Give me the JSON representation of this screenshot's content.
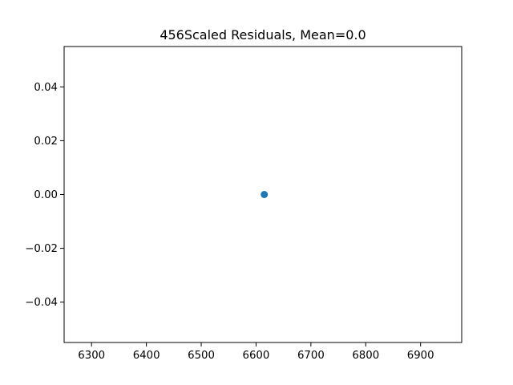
{
  "chart_data": {
    "type": "scatter",
    "title": "456Scaled Residuals, Mean=0.0",
    "xlabel": "",
    "ylabel": "",
    "xlim": [
      6250,
      6975
    ],
    "ylim": [
      -0.055,
      0.055
    ],
    "x_ticks": [
      6300,
      6400,
      6500,
      6600,
      6700,
      6800,
      6900
    ],
    "x_tick_labels": [
      "6300",
      "6400",
      "6500",
      "6600",
      "6700",
      "6800",
      "6900"
    ],
    "y_ticks": [
      0.04,
      0.02,
      0.0,
      -0.02,
      -0.04
    ],
    "y_tick_labels": [
      "0.04",
      "0.02",
      "0.00",
      "−0.02",
      "−0.04"
    ],
    "grid": false,
    "series": [
      {
        "color": "#1f77b4",
        "points": [
          {
            "x": 6615,
            "y": 0.0
          }
        ]
      }
    ]
  }
}
